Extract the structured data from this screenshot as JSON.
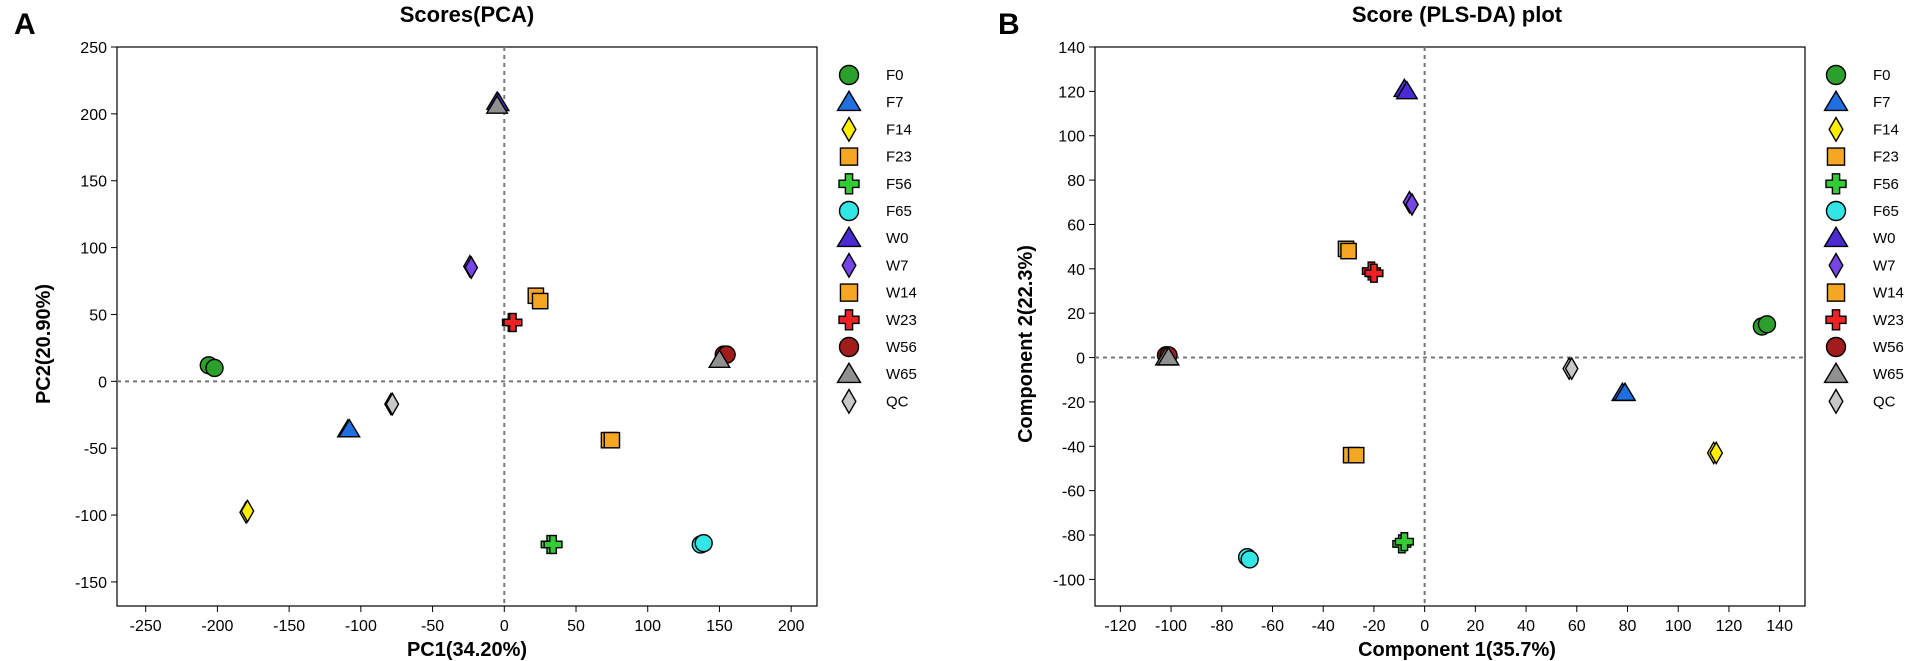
{
  "chart_data": [
    {
      "panel": "A",
      "type": "scatter",
      "title": "Scores(PCA)",
      "xlabel": "PC1(34.20%)",
      "ylabel": "PC2(20.90%)",
      "xlim": [
        -270,
        218
      ],
      "ylim": [
        -168,
        250
      ],
      "xticks": [
        -250,
        -200,
        -150,
        -100,
        -50,
        0,
        50,
        100,
        150,
        200
      ],
      "yticks": [
        -150,
        -100,
        -50,
        0,
        50,
        100,
        150,
        200,
        250
      ],
      "reference_lines": {
        "x": 0,
        "y": 0
      },
      "series": [
        {
          "name": "F0",
          "marker": "circle",
          "color": "#2ca02c",
          "points": [
            [
              -206,
              12
            ],
            [
              -202,
              10
            ]
          ]
        },
        {
          "name": "F7",
          "marker": "triangle",
          "color": "#1f6fe0",
          "points": [
            [
              -109,
              -36
            ],
            [
              -108,
              -36
            ]
          ]
        },
        {
          "name": "F14",
          "marker": "diamond",
          "color": "#ffee00",
          "points": [
            [
              -180,
              -98
            ],
            [
              -179,
              -97
            ]
          ]
        },
        {
          "name": "F23",
          "marker": "square",
          "color": "#f5a623",
          "points": [
            [
              73,
              -44
            ],
            [
              75,
              -44
            ]
          ]
        },
        {
          "name": "F56",
          "marker": "cross",
          "color": "#33cc33",
          "points": [
            [
              32,
              -122
            ],
            [
              34,
              -122
            ]
          ]
        },
        {
          "name": "F65",
          "marker": "circle",
          "color": "#33e6e6",
          "points": [
            [
              137,
              -122
            ],
            [
              139,
              -121
            ]
          ]
        },
        {
          "name": "W0",
          "marker": "triangle",
          "color": "#4b2bd1",
          "points": [
            [
              -5,
              209
            ],
            [
              -4,
              208
            ]
          ]
        },
        {
          "name": "W7",
          "marker": "diamond",
          "color": "#7744e6",
          "points": [
            [
              -24,
              86
            ],
            [
              -23,
              85
            ]
          ]
        },
        {
          "name": "W14",
          "marker": "square",
          "color": "#f5a623",
          "points": [
            [
              22,
              64
            ],
            [
              25,
              60
            ]
          ]
        },
        {
          "name": "W23",
          "marker": "cross",
          "color": "#ee2222",
          "points": [
            [
              5,
              44
            ],
            [
              6,
              44
            ]
          ]
        },
        {
          "name": "W56",
          "marker": "circle",
          "color": "#a31c1c",
          "points": [
            [
              153,
              20
            ],
            [
              155,
              20
            ]
          ]
        },
        {
          "name": "W65",
          "marker": "triangle",
          "color": "#909090",
          "points": [
            [
              -5,
              206
            ],
            [
              150,
              16
            ]
          ]
        },
        {
          "name": "QC",
          "marker": "diamond",
          "color": "#c8c8c8",
          "points": [
            [
              -79,
              -17
            ],
            [
              -78,
              -17
            ]
          ]
        }
      ]
    },
    {
      "panel": "B",
      "type": "scatter",
      "title": "Score (PLS-DA) plot",
      "xlabel": "Component 1(35.7%)",
      "ylabel": "Component 2(22.3%)",
      "xlim": [
        -130,
        150
      ],
      "ylim": [
        -112,
        140
      ],
      "xticks": [
        -120,
        -100,
        -80,
        -60,
        -40,
        -20,
        0,
        20,
        40,
        60,
        80,
        100,
        120,
        140
      ],
      "yticks": [
        -100,
        -80,
        -60,
        -40,
        -20,
        0,
        20,
        40,
        60,
        80,
        100,
        120,
        140
      ],
      "reference_lines": {
        "x": 0,
        "y": 0
      },
      "series": [
        {
          "name": "F0",
          "marker": "circle",
          "color": "#2ca02c",
          "points": [
            [
              133,
              14
            ],
            [
              135,
              15
            ]
          ]
        },
        {
          "name": "F7",
          "marker": "triangle",
          "color": "#1f6fe0",
          "points": [
            [
              78,
              -16
            ],
            [
              79,
              -16
            ]
          ]
        },
        {
          "name": "F14",
          "marker": "diamond",
          "color": "#ffee00",
          "points": [
            [
              114,
              -43
            ],
            [
              115,
              -43
            ]
          ]
        },
        {
          "name": "F23",
          "marker": "square",
          "color": "#f5a623",
          "points": [
            [
              -29,
              -44
            ],
            [
              -27,
              -44
            ]
          ]
        },
        {
          "name": "F56",
          "marker": "cross",
          "color": "#33cc33",
          "points": [
            [
              -9,
              -84
            ],
            [
              -8,
              -83
            ]
          ]
        },
        {
          "name": "F65",
          "marker": "circle",
          "color": "#33e6e6",
          "points": [
            [
              -70,
              -90
            ],
            [
              -69,
              -91
            ]
          ]
        },
        {
          "name": "W0",
          "marker": "triangle",
          "color": "#4b2bd1",
          "points": [
            [
              -8,
              121
            ],
            [
              -7,
              120
            ]
          ]
        },
        {
          "name": "W7",
          "marker": "diamond",
          "color": "#7744e6",
          "points": [
            [
              -6,
              70
            ],
            [
              -5,
              69
            ]
          ]
        },
        {
          "name": "W14",
          "marker": "square",
          "color": "#f5a623",
          "points": [
            [
              -31,
              49
            ],
            [
              -30,
              48
            ]
          ]
        },
        {
          "name": "W23",
          "marker": "cross",
          "color": "#ee2222",
          "points": [
            [
              -21,
              39
            ],
            [
              -20,
              38
            ]
          ]
        },
        {
          "name": "W56",
          "marker": "circle",
          "color": "#a31c1c",
          "points": [
            [
              -102,
              1
            ],
            [
              -101,
              1
            ]
          ]
        },
        {
          "name": "W65",
          "marker": "triangle",
          "color": "#909090",
          "points": [
            [
              -102,
              0
            ],
            [
              -101,
              0
            ]
          ]
        },
        {
          "name": "QC",
          "marker": "diamond",
          "color": "#c8c8c8",
          "points": [
            [
              57,
              -5
            ],
            [
              58,
              -5
            ]
          ]
        }
      ]
    }
  ]
}
